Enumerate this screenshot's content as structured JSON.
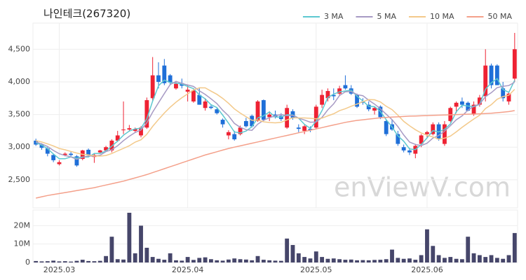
{
  "chart_data": [
    {
      "type": "candlestick",
      "title": "나인테크(267320)",
      "watermark": "enViewV.com",
      "up_color": "#ee2233",
      "down_color": "#1f6fd8",
      "legend": "top-right",
      "grid": true,
      "ylim": [
        2070,
        4900
      ],
      "yticks": [
        {
          "value": 2500,
          "label": "2,500"
        },
        {
          "value": 3000,
          "label": "3,000"
        },
        {
          "value": 3500,
          "label": "3,500"
        },
        {
          "value": 4000,
          "label": "4,000"
        },
        {
          "value": 4500,
          "label": "4,500"
        }
      ],
      "open": [
        3100,
        3040,
        2980,
        2880,
        2740,
        2880,
        2900,
        2860,
        2820,
        2960,
        2850,
        2920,
        2950,
        2950,
        3100,
        3260,
        3270,
        3250,
        3180,
        3300,
        3750,
        4100,
        4250,
        4100,
        3900,
        3980,
        3850,
        3700,
        3800,
        3600,
        3620,
        3580,
        3420,
        3180,
        3200,
        3200,
        3400,
        3480,
        3400,
        3720,
        3460,
        3500,
        3480,
        3300,
        3550,
        3300,
        3250,
        3280,
        3300,
        3650,
        3750,
        3800,
        3820,
        3950,
        3900,
        3800,
        3700,
        3650,
        3560,
        3620,
        3400,
        3350,
        3200,
        3000,
        2950,
        2900,
        3050,
        3200,
        3200,
        3350,
        3050,
        3400,
        3620,
        3700,
        3680,
        3500,
        3650,
        3780,
        4250,
        4250,
        3900,
        3700,
        4050
      ],
      "high": [
        3130,
        3060,
        3000,
        2900,
        2800,
        2920,
        2930,
        2880,
        2960,
        2980,
        2900,
        2960,
        3020,
        3120,
        3250,
        3700,
        3340,
        3300,
        3320,
        3760,
        4380,
        4300,
        4350,
        4120,
        4000,
        4050,
        3950,
        3900,
        3900,
        3750,
        3650,
        3600,
        3440,
        3260,
        3250,
        3330,
        3450,
        3500,
        3720,
        3730,
        3550,
        3560,
        3520,
        3650,
        3580,
        3350,
        3340,
        3320,
        3650,
        3880,
        3900,
        3900,
        3940,
        4100,
        3950,
        3820,
        3750,
        3700,
        3620,
        3640,
        3420,
        3420,
        3250,
        3040,
        2990,
        3050,
        3200,
        3250,
        3380,
        3380,
        3400,
        3620,
        3700,
        3760,
        3700,
        3700,
        3800,
        4500,
        4280,
        4270,
        4000,
        3850,
        4750
      ],
      "low": [
        3020,
        2960,
        2860,
        2770,
        2720,
        2860,
        2860,
        2700,
        2800,
        2860,
        2760,
        2900,
        2930,
        2920,
        3080,
        3200,
        3240,
        3230,
        3150,
        3280,
        3700,
        3900,
        3950,
        3950,
        3880,
        3900,
        3700,
        3680,
        3650,
        3560,
        3580,
        3500,
        3300,
        3120,
        3100,
        3180,
        3300,
        3300,
        3390,
        3400,
        3400,
        3440,
        3400,
        3280,
        3420,
        3230,
        3200,
        3230,
        3280,
        3600,
        3700,
        3720,
        3800,
        3880,
        3800,
        3600,
        3650,
        3550,
        3500,
        3430,
        3170,
        3250,
        3020,
        2920,
        2880,
        2830,
        3000,
        3150,
        3180,
        3100,
        3020,
        3380,
        3520,
        3600,
        3550,
        3480,
        3620,
        3700,
        3900,
        3950,
        3700,
        3650,
        4000
      ],
      "close": [
        3040,
        2990,
        2900,
        2800,
        2770,
        2900,
        2880,
        2720,
        2950,
        2880,
        2880,
        2950,
        3000,
        3100,
        3180,
        3270,
        3290,
        3280,
        3300,
        3720,
        4100,
        4000,
        3980,
        3990,
        3970,
        3940,
        3880,
        3870,
        3650,
        3700,
        3600,
        3520,
        3350,
        3230,
        3120,
        3300,
        3320,
        3320,
        3700,
        3420,
        3500,
        3460,
        3430,
        3600,
        3450,
        3280,
        3320,
        3260,
        3620,
        3800,
        3860,
        3780,
        3900,
        3900,
        3820,
        3620,
        3680,
        3580,
        3600,
        3460,
        3200,
        3270,
        3050,
        2950,
        2920,
        3020,
        3180,
        3230,
        3350,
        3120,
        3350,
        3600,
        3680,
        3650,
        3560,
        3650,
        3760,
        4250,
        3950,
        3950,
        3750,
        3820,
        4500
      ],
      "series": [
        {
          "name": "3 MA",
          "color": "#5cc8d0",
          "values": [
            3070,
            3030,
            2977,
            2897,
            2823,
            2823,
            2850,
            2833,
            2850,
            2850,
            2903,
            2903,
            2943,
            3017,
            3093,
            3183,
            3247,
            3280,
            3290,
            3433,
            3707,
            3940,
            4027,
            3990,
            3980,
            3967,
            3930,
            3897,
            3800,
            3740,
            3650,
            3607,
            3490,
            3367,
            3233,
            3217,
            3247,
            3313,
            3447,
            3480,
            3540,
            3460,
            3463,
            3497,
            3493,
            3443,
            3350,
            3287,
            3400,
            3560,
            3760,
            3813,
            3847,
            3860,
            3873,
            3780,
            3707,
            3627,
            3620,
            3547,
            3420,
            3310,
            3173,
            3090,
            2973,
            2963,
            3040,
            3143,
            3253,
            3233,
            3273,
            3357,
            3543,
            3643,
            3630,
            3620,
            3657,
            3887,
            3987,
            4050,
            3883,
            3840,
            4023
          ]
        },
        {
          "name": "5 MA",
          "color": "#a79ac4",
          "values": [
            3080,
            3050,
            3010,
            2950,
            2900,
            2872,
            2850,
            2814,
            2844,
            2866,
            2862,
            2876,
            2932,
            2962,
            3022,
            3100,
            3168,
            3224,
            3264,
            3372,
            3538,
            3680,
            3820,
            3958,
            4008,
            3976,
            3952,
            3930,
            3862,
            3808,
            3740,
            3668,
            3564,
            3480,
            3364,
            3304,
            3268,
            3258,
            3352,
            3412,
            3452,
            3480,
            3502,
            3482,
            3488,
            3444,
            3416,
            3382,
            3386,
            3456,
            3572,
            3664,
            3792,
            3848,
            3852,
            3804,
            3788,
            3720,
            3660,
            3588,
            3504,
            3422,
            3316,
            3186,
            3078,
            3042,
            3024,
            3060,
            3140,
            3180,
            3246,
            3330,
            3420,
            3480,
            3568,
            3628,
            3660,
            3774,
            3834,
            3912,
            3932,
            3944,
            3994
          ]
        },
        {
          "name": "10 MA",
          "color": "#f3c98a",
          "values": [
            3100,
            3080,
            3050,
            3020,
            2980,
            2960,
            2935,
            2910,
            2890,
            2883,
            2867,
            2863,
            2873,
            2903,
            2944,
            2981,
            3022,
            3078,
            3113,
            3197,
            3319,
            3424,
            3522,
            3611,
            3690,
            3757,
            3816,
            3875,
            3910,
            3908,
            3858,
            3810,
            3747,
            3671,
            3586,
            3522,
            3466,
            3411,
            3416,
            3388,
            3378,
            3372,
            3380,
            3417,
            3450,
            3448,
            3448,
            3442,
            3434,
            3444,
            3480,
            3512,
            3559,
            3589,
            3626,
            3660,
            3696,
            3728,
            3726,
            3692,
            3626,
            3575,
            3490,
            3395,
            3327,
            3267,
            3217,
            3182,
            3157,
            3123,
            3138,
            3171,
            3234,
            3304,
            3368,
            3431,
            3489,
            3591,
            3651,
            3734,
            3774,
            3796,
            3886
          ]
        },
        {
          "name": "50 MA",
          "color": "#f4a08a",
          "values": [
            2220,
            2240,
            2260,
            2275,
            2290,
            2305,
            2320,
            2335,
            2350,
            2365,
            2380,
            2400,
            2420,
            2440,
            2460,
            2480,
            2505,
            2530,
            2555,
            2580,
            2610,
            2640,
            2670,
            2700,
            2730,
            2760,
            2790,
            2820,
            2850,
            2880,
            2905,
            2930,
            2955,
            2980,
            3000,
            3020,
            3040,
            3060,
            3080,
            3100,
            3120,
            3140,
            3160,
            3180,
            3200,
            3220,
            3240,
            3260,
            3280,
            3300,
            3320,
            3340,
            3360,
            3380,
            3395,
            3410,
            3420,
            3430,
            3440,
            3450,
            3455,
            3460,
            3465,
            3470,
            3475,
            3478,
            3481,
            3484,
            3487,
            3490,
            3493,
            3496,
            3499,
            3502,
            3505,
            3508,
            3511,
            3515,
            3520,
            3528,
            3536,
            3545,
            3560
          ]
        }
      ]
    },
    {
      "type": "bar",
      "color": "#46466a",
      "grid": true,
      "categories": [
        null,
        null,
        null,
        null,
        "2025.03",
        null,
        null,
        null,
        null,
        null,
        null,
        null,
        null,
        null,
        null,
        null,
        null,
        null,
        null,
        null,
        null,
        null,
        null,
        null,
        null,
        null,
        "2025.04",
        null,
        null,
        null,
        null,
        null,
        null,
        null,
        null,
        null,
        null,
        null,
        null,
        null,
        null,
        null,
        null,
        null,
        null,
        null,
        null,
        null,
        "2025.05",
        null,
        null,
        null,
        null,
        null,
        null,
        null,
        null,
        null,
        null,
        null,
        null,
        null,
        null,
        null,
        null,
        null,
        null,
        "2025.06",
        null,
        null,
        null,
        null,
        null,
        null,
        null,
        null,
        null,
        null,
        null,
        null,
        null,
        null,
        null
      ],
      "values": [
        800000,
        600000,
        700000,
        1000000,
        600000,
        700000,
        500000,
        900000,
        1500000,
        800000,
        700000,
        900000,
        3500000,
        14000000,
        1800000,
        1600000,
        27000000,
        5000000,
        20000000,
        8000000,
        3000000,
        2000000,
        1500000,
        5000000,
        1200000,
        1000000,
        3000000,
        1400000,
        2500000,
        2800000,
        1800000,
        1200000,
        1000000,
        1600000,
        2200000,
        1800000,
        1600000,
        1200000,
        3500000,
        1500000,
        1200000,
        1000000,
        900000,
        13000000,
        9500000,
        5000000,
        3000000,
        2200000,
        6000000,
        3000000,
        2000000,
        2200000,
        1800000,
        1500000,
        1600000,
        1200000,
        1300000,
        1200000,
        1400000,
        1500000,
        1800000,
        7000000,
        2500000,
        2000000,
        2200000,
        1500000,
        4000000,
        18000000,
        9000000,
        4000000,
        2500000,
        3000000,
        2000000,
        1800000,
        14000000,
        5000000,
        4000000,
        3000000,
        4000000,
        2500000,
        2000000,
        4000000,
        16000000
      ],
      "ylim": [
        0,
        28500000
      ],
      "yticks": [
        0,
        {
          "value": 10000000,
          "label": "10M"
        },
        {
          "value": 20000000,
          "label": "20M"
        }
      ]
    }
  ]
}
